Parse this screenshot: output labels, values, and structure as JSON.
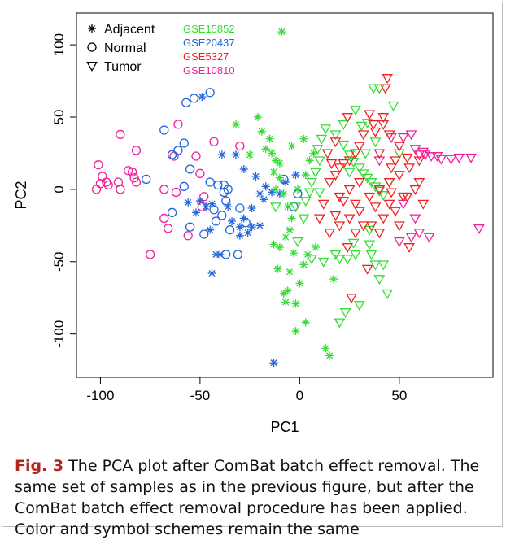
{
  "chart_data": {
    "type": "scatter",
    "title": "",
    "xlabel": "PC1",
    "ylabel": "PC2",
    "xlim": [
      -112,
      97
    ],
    "ylim": [
      -130,
      122
    ],
    "xticks": [
      "-100",
      "-50",
      "0",
      "50"
    ],
    "xtick_values": [
      -100,
      -50,
      0,
      50
    ],
    "yticks": [
      "-100",
      "-50",
      "0",
      "50",
      "100"
    ],
    "ytick_values": [
      -100,
      -50,
      0,
      50,
      100
    ],
    "grid": false,
    "legend_placement": "top-left",
    "shape_legend": [
      {
        "label": "Adjacent",
        "shape": "asterisk"
      },
      {
        "label": "Normal",
        "shape": "circle"
      },
      {
        "label": "Tumor",
        "shape": "triangle-down"
      }
    ],
    "color_legend": [
      {
        "label": "GSE15852",
        "color": "#33dd33"
      },
      {
        "label": "GSE20437",
        "color": "#2266dd"
      },
      {
        "label": "GSE5327",
        "color": "#ee2222"
      },
      {
        "label": "GSE10810",
        "color": "#ee2299"
      }
    ],
    "series": [
      {
        "dataset": "GSE10810",
        "shape": "circle",
        "points": [
          [
            -101,
            17
          ],
          [
            -99,
            9
          ],
          [
            -97,
            5
          ],
          [
            -100,
            4
          ],
          [
            -102,
            0
          ],
          [
            -96,
            3
          ],
          [
            -91,
            5
          ],
          [
            -90,
            38
          ],
          [
            -86,
            13
          ],
          [
            -84,
            12
          ],
          [
            -82,
            27
          ],
          [
            -83,
            8
          ],
          [
            -75,
            -45
          ],
          [
            -68,
            -20
          ],
          [
            -68,
            0
          ],
          [
            -66,
            -27
          ],
          [
            -63,
            23
          ],
          [
            -61,
            45
          ],
          [
            -56,
            -32
          ],
          [
            -50,
            11
          ],
          [
            -49,
            -12
          ],
          [
            -52,
            23
          ],
          [
            -48,
            -5
          ],
          [
            -43,
            33
          ],
          [
            -30,
            30
          ],
          [
            -90,
            0
          ],
          [
            -82,
            5
          ],
          [
            -62,
            -2
          ]
        ]
      },
      {
        "dataset": "GSE10810",
        "shape": "triangle-down",
        "points": [
          [
            60,
            24
          ],
          [
            63,
            24
          ],
          [
            66,
            23
          ],
          [
            69,
            23
          ],
          [
            71,
            21
          ],
          [
            76,
            21
          ],
          [
            80,
            22
          ],
          [
            86,
            22
          ],
          [
            90,
            -27
          ],
          [
            46,
            36
          ],
          [
            52,
            36
          ],
          [
            56,
            38
          ],
          [
            58,
            28
          ],
          [
            62,
            26
          ],
          [
            60,
            -30
          ],
          [
            56,
            -33
          ],
          [
            50,
            -36
          ],
          [
            52,
            -10
          ],
          [
            58,
            -20
          ],
          [
            65,
            -33
          ],
          [
            40,
            20
          ]
        ]
      },
      {
        "dataset": "GSE20437",
        "shape": "circle",
        "points": [
          [
            -57,
            60
          ],
          [
            -53,
            63
          ],
          [
            -45,
            67
          ],
          [
            -68,
            41
          ],
          [
            -64,
            24
          ],
          [
            -61,
            27
          ],
          [
            -58,
            32
          ],
          [
            -55,
            14
          ],
          [
            -58,
            2
          ],
          [
            -64,
            -16
          ],
          [
            -55,
            -26
          ],
          [
            -48,
            -31
          ],
          [
            -43,
            -14
          ],
          [
            -42,
            -22
          ],
          [
            -38,
            -2
          ],
          [
            -38,
            3
          ],
          [
            -36,
            0
          ],
          [
            -41,
            3
          ],
          [
            -37,
            -8
          ],
          [
            -39,
            -18
          ],
          [
            -35,
            -28
          ],
          [
            -31,
            -45
          ],
          [
            -37,
            -45
          ],
          [
            -30,
            -13
          ],
          [
            -27,
            -23
          ],
          [
            -8,
            7
          ],
          [
            -3,
            -12
          ],
          [
            -1,
            -3
          ],
          [
            -77,
            7
          ],
          [
            -45,
            5
          ]
        ]
      },
      {
        "dataset": "GSE20437",
        "shape": "asterisk",
        "points": [
          [
            -49,
            64
          ],
          [
            -39,
            24
          ],
          [
            -32,
            24
          ],
          [
            -28,
            14
          ],
          [
            -22,
            9
          ],
          [
            -20,
            -3
          ],
          [
            -17,
            2
          ],
          [
            -14,
            -2
          ],
          [
            -18,
            -7
          ],
          [
            -24,
            -13
          ],
          [
            -56,
            -9
          ],
          [
            -52,
            -16
          ],
          [
            -50,
            -8
          ],
          [
            -47,
            -12
          ],
          [
            -45,
            -28
          ],
          [
            -42,
            -45
          ],
          [
            -40,
            -45
          ],
          [
            -44,
            -58
          ],
          [
            -34,
            -22
          ],
          [
            -30,
            -26
          ],
          [
            -30,
            -32
          ],
          [
            -28,
            -20
          ],
          [
            -26,
            -30
          ],
          [
            -24,
            -26
          ],
          [
            -20,
            -25
          ],
          [
            -36,
            -12
          ],
          [
            -13,
            -120
          ],
          [
            -10,
            -3
          ],
          [
            -7,
            5
          ],
          [
            -2,
            10
          ],
          [
            -44,
            -10
          ]
        ]
      },
      {
        "dataset": "GSE15852",
        "shape": "asterisk",
        "points": [
          [
            -9,
            109
          ],
          [
            -32,
            45
          ],
          [
            -21,
            50
          ],
          [
            -15,
            35
          ],
          [
            -19,
            40
          ],
          [
            -17,
            28
          ],
          [
            -25,
            24
          ],
          [
            -14,
            25
          ],
          [
            -12,
            20
          ],
          [
            -10,
            18
          ],
          [
            -13,
            12
          ],
          [
            -10,
            8
          ],
          [
            -12,
            0
          ],
          [
            -8,
            -3
          ],
          [
            -6,
            -12
          ],
          [
            -4,
            -20
          ],
          [
            -5,
            -28
          ],
          [
            -7,
            -33
          ],
          [
            -10,
            -40
          ],
          [
            -13,
            -38
          ],
          [
            -11,
            -55
          ],
          [
            -5,
            -57
          ],
          [
            -8,
            -72
          ],
          [
            -6,
            -70
          ],
          [
            -7,
            -78
          ],
          [
            0,
            -65
          ],
          [
            -2,
            -79
          ],
          [
            3,
            -92
          ],
          [
            -2,
            -98
          ],
          [
            4,
            -45
          ],
          [
            -3,
            -44
          ],
          [
            2,
            -52
          ],
          [
            13,
            -110
          ],
          [
            15,
            -115
          ],
          [
            17,
            -62
          ],
          [
            7,
            25
          ],
          [
            5,
            20
          ],
          [
            3,
            10
          ],
          [
            -4,
            30
          ],
          [
            2,
            35
          ],
          [
            -1,
            0
          ],
          [
            8,
            -40
          ]
        ]
      },
      {
        "dataset": "GSE15852",
        "shape": "triangle-down",
        "points": [
          [
            3,
            -8
          ],
          [
            5,
            -2
          ],
          [
            6,
            5
          ],
          [
            8,
            12
          ],
          [
            10,
            20
          ],
          [
            9,
            28
          ],
          [
            11,
            35
          ],
          [
            13,
            42
          ],
          [
            18,
            38
          ],
          [
            22,
            31
          ],
          [
            25,
            24
          ],
          [
            27,
            19
          ],
          [
            30,
            15
          ],
          [
            32,
            11
          ],
          [
            34,
            8
          ],
          [
            36,
            5
          ],
          [
            38,
            2
          ],
          [
            40,
            -1
          ],
          [
            42,
            -4
          ],
          [
            38,
            33
          ],
          [
            33,
            25
          ],
          [
            35,
            -28
          ],
          [
            27,
            -37
          ],
          [
            35,
            -38
          ],
          [
            38,
            -52
          ],
          [
            42,
            -52
          ],
          [
            40,
            -62
          ],
          [
            44,
            -72
          ],
          [
            30,
            -80
          ],
          [
            23,
            -85
          ],
          [
            20,
            -92
          ],
          [
            28,
            -45
          ],
          [
            24,
            -48
          ],
          [
            18,
            -45
          ],
          [
            20,
            -48
          ],
          [
            12,
            -50
          ],
          [
            -1,
            -36
          ],
          [
            -12,
            -12
          ],
          [
            -2,
            -12
          ],
          [
            2,
            -20
          ],
          [
            10,
            -2
          ],
          [
            25,
            12
          ],
          [
            45,
            5
          ],
          [
            6,
            -48
          ],
          [
            36,
            -45
          ],
          [
            31,
            44
          ],
          [
            34,
            46
          ],
          [
            37,
            70
          ],
          [
            40,
            70
          ],
          [
            47,
            58
          ],
          [
            50,
            25
          ],
          [
            22,
            45
          ],
          [
            28,
            55
          ]
        ]
      },
      {
        "dataset": "GSE5327",
        "shape": "triangle-down",
        "points": [
          [
            44,
            77
          ],
          [
            43,
            70
          ],
          [
            42,
            45
          ],
          [
            38,
            40
          ],
          [
            45,
            38
          ],
          [
            50,
            30
          ],
          [
            30,
            30
          ],
          [
            28,
            25
          ],
          [
            25,
            20
          ],
          [
            22,
            18
          ],
          [
            20,
            15
          ],
          [
            18,
            10
          ],
          [
            15,
            5
          ],
          [
            20,
            -5
          ],
          [
            25,
            0
          ],
          [
            30,
            5
          ],
          [
            35,
            -5
          ],
          [
            40,
            0
          ],
          [
            45,
            5
          ],
          [
            50,
            10
          ],
          [
            55,
            15
          ],
          [
            60,
            20
          ],
          [
            48,
            20
          ],
          [
            45,
            -10
          ],
          [
            38,
            -12
          ],
          [
            30,
            -15
          ],
          [
            25,
            -20
          ],
          [
            20,
            -25
          ],
          [
            15,
            -30
          ],
          [
            10,
            -20
          ],
          [
            12,
            -10
          ],
          [
            28,
            -10
          ],
          [
            32,
            -25
          ],
          [
            40,
            -30
          ],
          [
            55,
            -40
          ],
          [
            62,
            -10
          ],
          [
            58,
            0
          ],
          [
            52,
            -5
          ],
          [
            48,
            -15
          ],
          [
            42,
            -20
          ],
          [
            36,
            -25
          ],
          [
            28,
            -30
          ],
          [
            24,
            -40
          ],
          [
            34,
            -55
          ],
          [
            26,
            -75
          ],
          [
            18,
            -18
          ],
          [
            22,
            -8
          ],
          [
            16,
            18
          ],
          [
            14,
            25
          ],
          [
            18,
            33
          ],
          [
            32,
            38
          ],
          [
            37,
            45
          ],
          [
            40,
            25
          ],
          [
            46,
            15
          ],
          [
            54,
            22
          ],
          [
            24,
            50
          ],
          [
            35,
            52
          ],
          [
            42,
            50
          ],
          [
            54,
            -5
          ],
          [
            46,
            -2
          ],
          [
            60,
            5
          ],
          [
            50,
            -25
          ]
        ]
      }
    ]
  },
  "caption": {
    "label": "Fig. 3",
    "text": " The PCA plot after ComBat batch effect removal. The same set of samples as in the previous figure, but after the ComBat batch effect removal procedure has been applied. Color and symbol schemes remain the same"
  }
}
